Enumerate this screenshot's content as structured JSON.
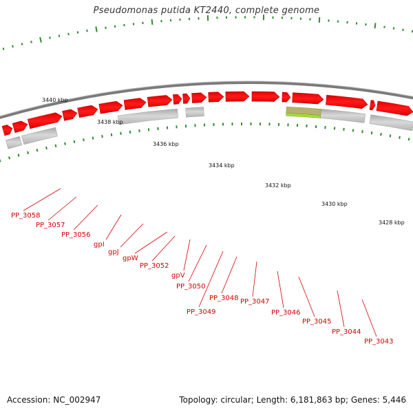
{
  "title": "Pseudomonas putida KT2440, complete genome",
  "accession": "Accession: NC_002947",
  "summary": "Topology: circular; Length: 6,181,863 bp; Genes: 5,446",
  "colors": {
    "backbone": "#7a7a7a",
    "gene_red": "#ff0000",
    "gene_gray": "#c0c0c0",
    "gene_highlight": "#a2e030",
    "tick": "#2e8b2e",
    "label": "#d40000"
  },
  "scale_labels": [
    "3440 kbp",
    "3438 kbp",
    "3436 kbp",
    "3434 kbp",
    "3432 kbp",
    "3430 kbp",
    "3428 kbp"
  ],
  "gene_labels": [
    "PP_3058",
    "PP_3057",
    "PP_3056",
    "gpI",
    "gpJ",
    "gpW",
    "PP_3052",
    "gpV",
    "PP_3050",
    "PP_3049",
    "PP_3048",
    "PP_3047",
    "PP_3046",
    "PP_3045",
    "PP_3044",
    "PP_3043"
  ]
}
